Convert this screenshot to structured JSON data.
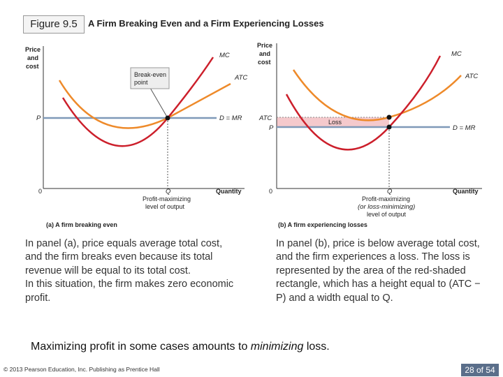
{
  "header": {
    "figure_tag": "Figure 9.5",
    "title": "A Firm Breaking Even and a Firm Experiencing Losses"
  },
  "panel_a": {
    "y_axis_label_1": "Price",
    "y_axis_label_2": "and",
    "y_axis_label_3": "cost",
    "x_axis_label": "Quantity",
    "origin": "0",
    "price_label": "P",
    "mc_label": "MC",
    "atc_label": "ATC",
    "demand_label": "D = MR",
    "callout_line_1": "Break-even",
    "callout_line_2": "point",
    "q_label": "Q",
    "q_desc_1": "Profit-maximizing",
    "q_desc_2": "level of output",
    "subtitle": "(a) A firm breaking even"
  },
  "panel_b": {
    "y_axis_label_1": "Price",
    "y_axis_label_2": "and",
    "y_axis_label_3": "cost",
    "x_axis_label": "Quantity",
    "origin": "0",
    "atc_price_label": "ATC",
    "price_label": "P",
    "mc_label": "MC",
    "atc_label": "ATC",
    "demand_label": "D = MR",
    "loss_label": "Loss",
    "q_label": "Q",
    "q_desc_1": "Profit-maximizing",
    "q_desc_2": "(or loss-minimizing)",
    "q_desc_3": "level of output",
    "subtitle": "(b) A firm experiencing losses"
  },
  "captions": {
    "a_1": "In panel (a), price equals average total cost, and the firm breaks even because its total revenue will be equal to its total cost.",
    "a_2": "In this situation, the firm makes zero economic profit.",
    "b": "In panel (b), price is below average total cost, and the firm experiences a loss. The loss is represented by the area of the red-shaded rectangle, which has a height equal to (ATC − P) and a width equal to Q."
  },
  "bottom_note": {
    "prefix": "Maximizing profit in some cases amounts to ",
    "emph": "minimizing",
    "suffix": " loss."
  },
  "footer": {
    "copyright": "© 2013 Pearson Education, Inc. Publishing as Prentice Hall",
    "page": "28 of 54"
  },
  "colors": {
    "mc_curve": "#cc1f2b",
    "atc_curve": "#ee8a2a",
    "demand_line": "#7f99b8",
    "loss_fill": "#f5c9cc",
    "axis": "#333333"
  }
}
